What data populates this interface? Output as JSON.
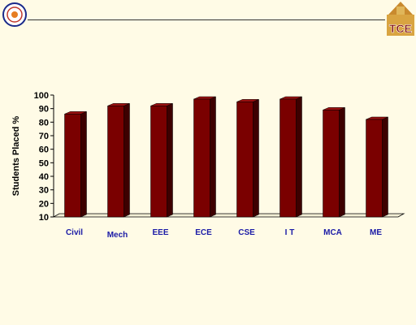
{
  "colors": {
    "bar_front": "#7a0000",
    "bar_side": "#3d0000",
    "bar_top": "#9b1010",
    "category_text": "#1a1aa6",
    "background": "#fffbe6"
  },
  "logos": {
    "right_text": "TCE"
  },
  "chart_data": {
    "type": "bar",
    "title": "",
    "xlabel": "",
    "ylabel": "Students Placed  %",
    "categories": [
      "Civil",
      "Mech",
      "EEE",
      "ECE",
      "CSE",
      "I T",
      "MCA",
      "ME"
    ],
    "values": [
      86,
      92,
      92,
      97,
      95,
      97,
      89,
      82
    ],
    "ylim": [
      10,
      100
    ],
    "yticks": [
      10,
      20,
      30,
      40,
      50,
      60,
      70,
      80,
      90,
      100
    ],
    "grid": false,
    "legend": "none",
    "style": "3d"
  }
}
